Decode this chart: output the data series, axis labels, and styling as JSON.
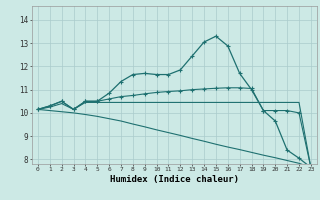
{
  "xlabel": "Humidex (Indice chaleur)",
  "bg_color": "#cce9e5",
  "grid_color": "#aacccc",
  "line_color": "#1e7070",
  "xlim": [
    -0.5,
    23.5
  ],
  "ylim": [
    7.8,
    14.6
  ],
  "yticks": [
    8,
    9,
    10,
    11,
    12,
    13,
    14
  ],
  "xticks": [
    0,
    1,
    2,
    3,
    4,
    5,
    6,
    7,
    8,
    9,
    10,
    11,
    12,
    13,
    14,
    15,
    16,
    17,
    18,
    19,
    20,
    21,
    22,
    23
  ],
  "series1_x": [
    0,
    1,
    2,
    3,
    4,
    5,
    6,
    7,
    8,
    9,
    10,
    11,
    12,
    13,
    14,
    15,
    16,
    17,
    18,
    19,
    20,
    21,
    22,
    23
  ],
  "series1_y": [
    10.15,
    10.3,
    10.5,
    10.15,
    10.5,
    10.5,
    10.85,
    11.35,
    11.65,
    11.7,
    11.65,
    11.65,
    11.85,
    12.45,
    13.05,
    13.3,
    12.88,
    11.7,
    11.0,
    10.1,
    9.65,
    8.4,
    8.05,
    7.65
  ],
  "series2_x": [
    0,
    1,
    2,
    3,
    4,
    5,
    6,
    7,
    8,
    9,
    10,
    11,
    12,
    13,
    14,
    15,
    16,
    17,
    18,
    19,
    20,
    21,
    22,
    23
  ],
  "series2_y": [
    10.15,
    10.3,
    10.5,
    10.15,
    10.5,
    10.5,
    10.6,
    10.7,
    10.75,
    10.82,
    10.88,
    10.92,
    10.95,
    11.0,
    11.03,
    11.06,
    11.08,
    11.08,
    11.05,
    10.1,
    10.1,
    10.1,
    10.0,
    7.65
  ],
  "series3_x": [
    0,
    1,
    2,
    3,
    4,
    5,
    6,
    7,
    8,
    9,
    10,
    11,
    12,
    13,
    14,
    15,
    16,
    17,
    18,
    19,
    20,
    21,
    22,
    23
  ],
  "series3_y": [
    10.15,
    10.25,
    10.4,
    10.15,
    10.45,
    10.45,
    10.45,
    10.45,
    10.45,
    10.45,
    10.45,
    10.45,
    10.45,
    10.45,
    10.45,
    10.45,
    10.45,
    10.45,
    10.45,
    10.45,
    10.45,
    10.45,
    10.45,
    7.65
  ],
  "series4_x": [
    0,
    1,
    2,
    3,
    4,
    5,
    6,
    7,
    8,
    9,
    10,
    11,
    12,
    13,
    14,
    15,
    16,
    17,
    18,
    19,
    20,
    21,
    22,
    23
  ],
  "series4_y": [
    10.15,
    10.1,
    10.05,
    10.0,
    9.93,
    9.85,
    9.75,
    9.65,
    9.52,
    9.4,
    9.27,
    9.15,
    9.03,
    8.9,
    8.78,
    8.65,
    8.53,
    8.42,
    8.3,
    8.18,
    8.07,
    7.95,
    7.83,
    7.65
  ]
}
